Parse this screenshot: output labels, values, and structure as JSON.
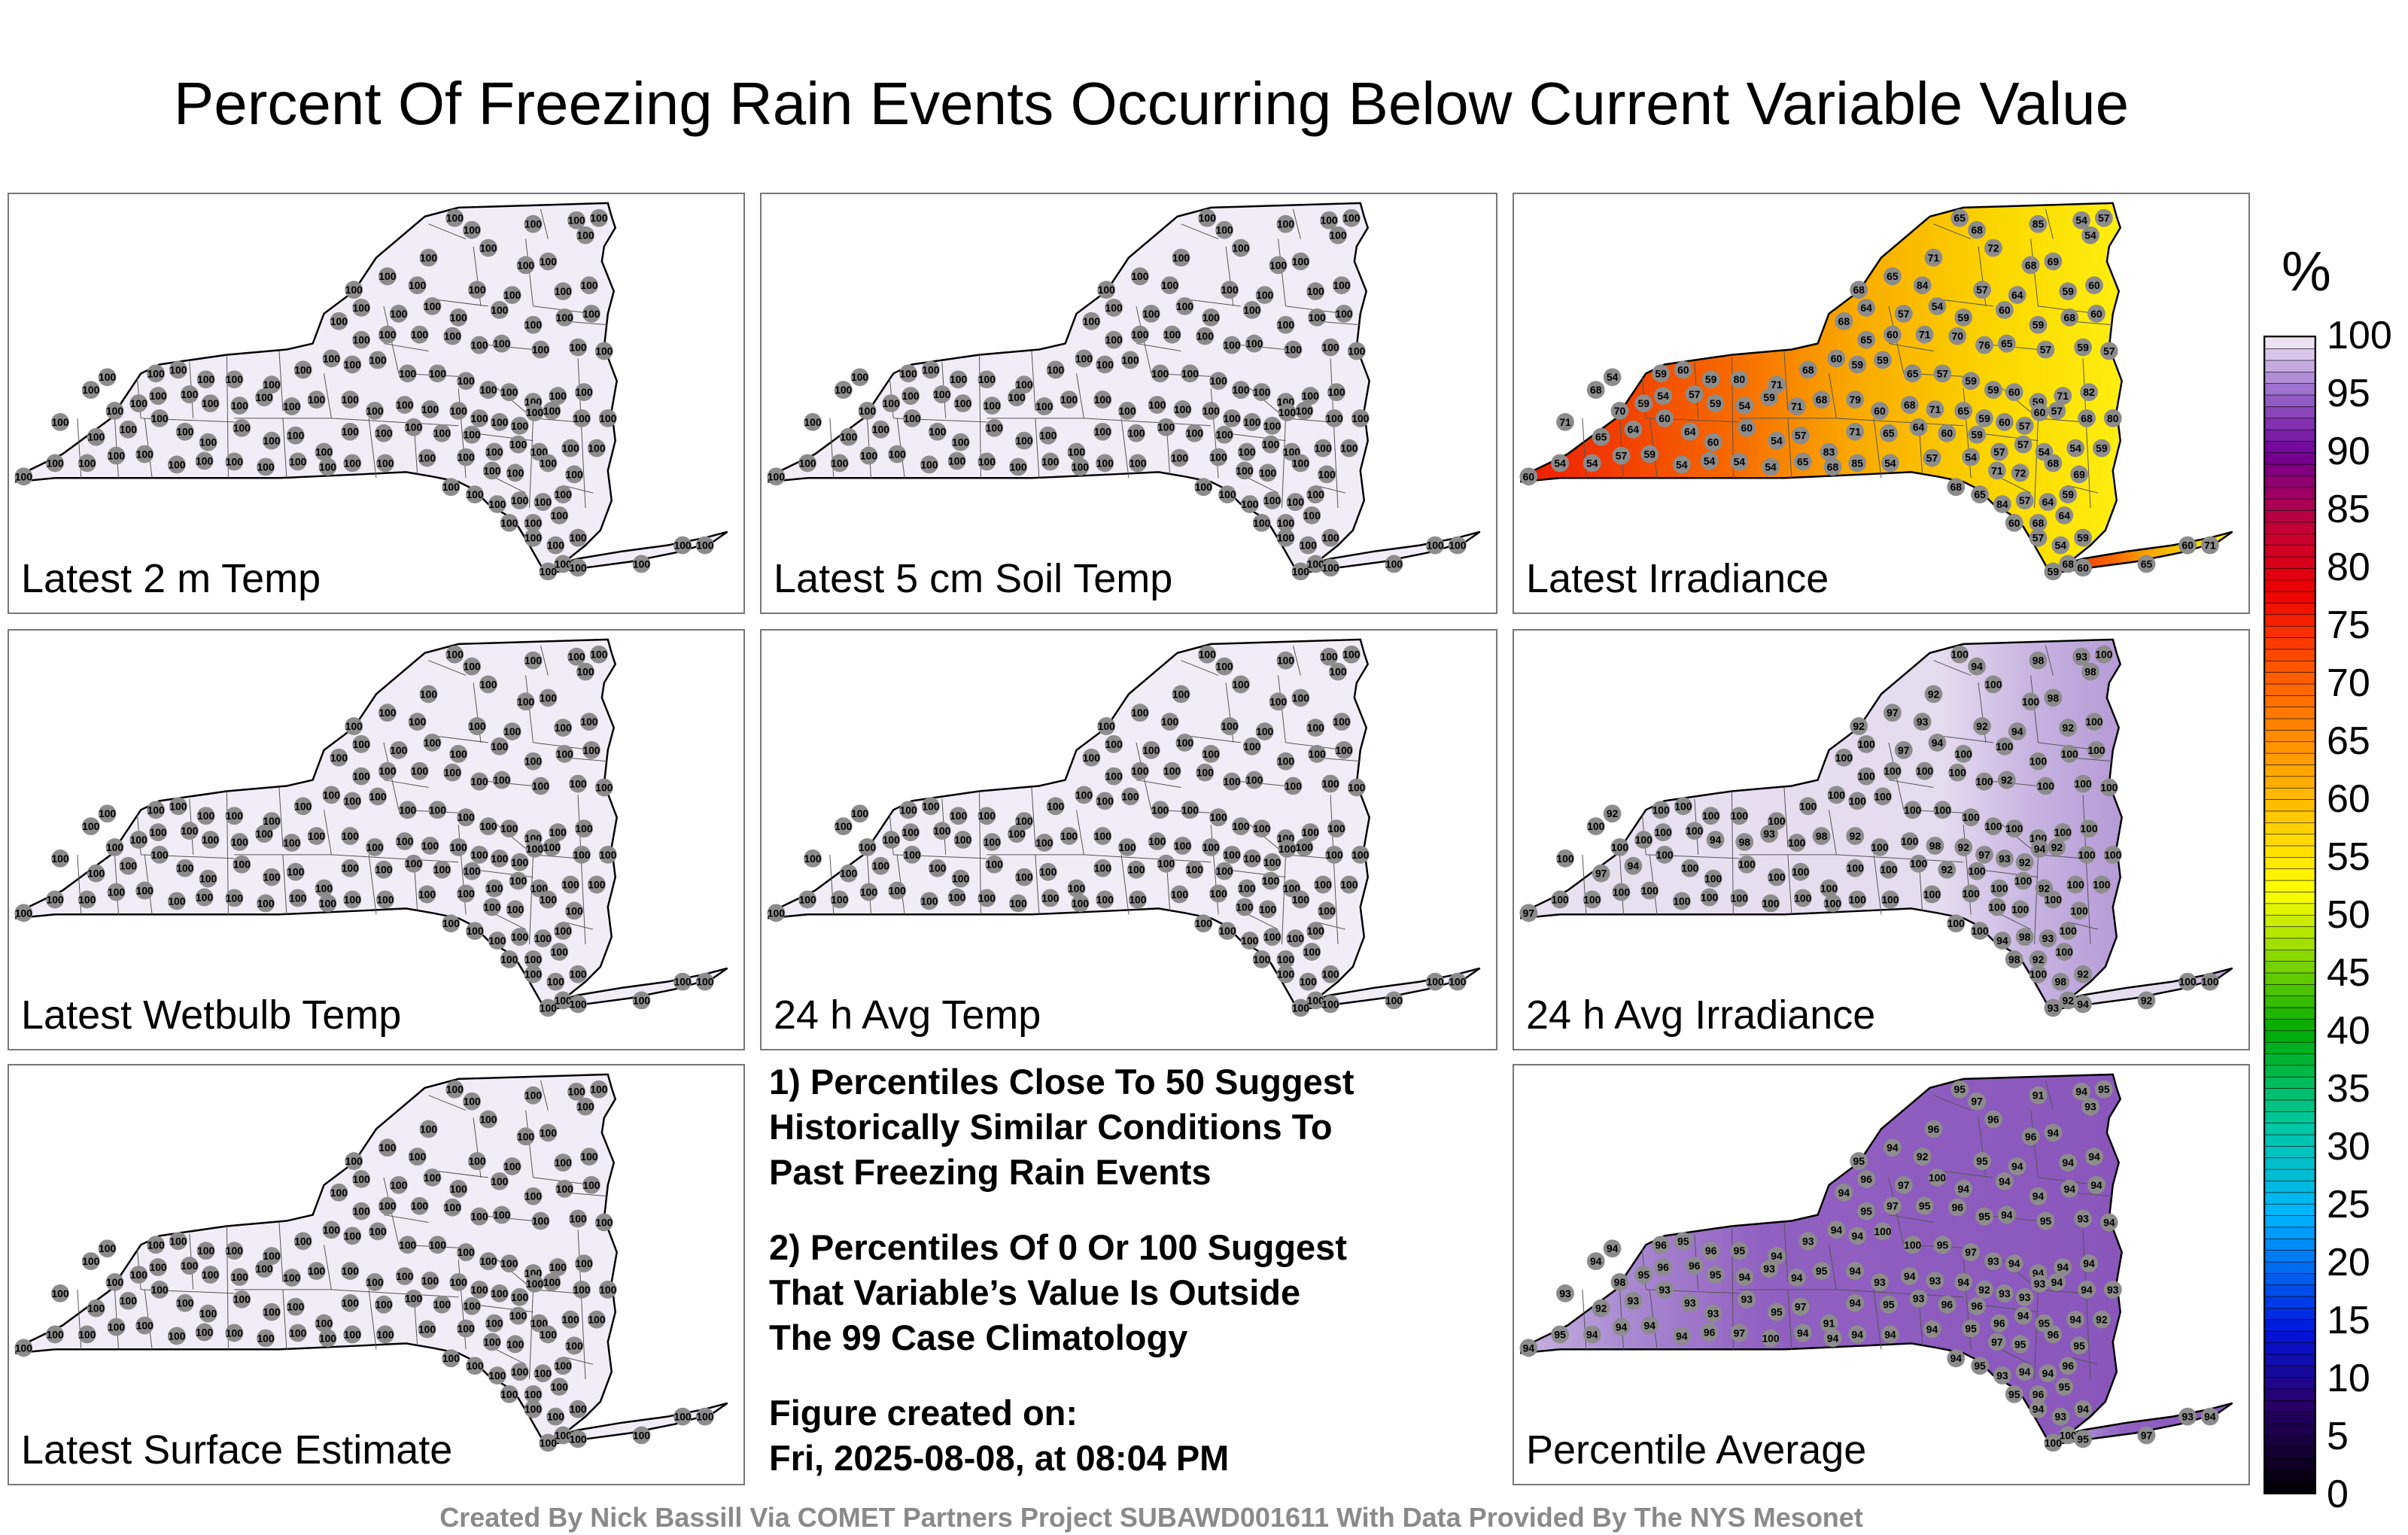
{
  "title": "Percent Of Freezing Rain Events Occurring Below Current Variable Value",
  "panels": [
    {
      "label": "Latest 2 m Temp",
      "mode": "uniform100"
    },
    {
      "label": "Latest 5 cm Soil Temp",
      "mode": "uniform100"
    },
    {
      "label": "Latest Irradiance",
      "mode": "irradiance"
    },
    {
      "label": "Latest Wetbulb Temp",
      "mode": "uniform100"
    },
    {
      "label": "24 h Avg Temp",
      "mode": "uniform100"
    },
    {
      "label": "24 h Avg Irradiance",
      "mode": "avgirr"
    },
    {
      "label": "Latest Surface Estimate",
      "mode": "uniform100"
    },
    {
      "label": "Percentile Average",
      "mode": "average"
    }
  ],
  "notes": {
    "note1": "1) Percentiles Close To 50 Suggest\nHistorically Similar Conditions To\nPast Freezing Rain Events",
    "note2": "2) Percentiles Of 0 Or 100 Suggest\nThat Variable’s Value Is Outside\nThe 99 Case Climatology",
    "created": "Figure created on:\nFri, 2025-08-08, at 08:04 PM"
  },
  "credit": "Created By Nick Bassill Via COMET Partners Project SUBAWD001611 With Data Provided By The NYS Mesonet",
  "colorbar": {
    "unit": "%",
    "ticks": [
      "0",
      "5",
      "10",
      "15",
      "20",
      "25",
      "30",
      "35",
      "40",
      "45",
      "50",
      "55",
      "60",
      "65",
      "70",
      "75",
      "80",
      "85",
      "90",
      "95",
      "100"
    ]
  },
  "station_values": {
    "uniform": "100",
    "irradiance": [
      "65",
      "68",
      "85",
      "54",
      "57",
      "54",
      "71",
      "72",
      "68",
      "69",
      "68",
      "65",
      "84",
      "57",
      "64",
      "59",
      "60",
      "68",
      "64",
      "57",
      "54",
      "59",
      "60",
      "59",
      "68",
      "60",
      "65",
      "60",
      "71",
      "70",
      "76",
      "65",
      "57",
      "59",
      "57",
      "54",
      "59",
      "60",
      "59",
      "80",
      "71",
      "68",
      "60",
      "59",
      "59",
      "65",
      "57",
      "59",
      "59",
      "60",
      "59",
      "71",
      "82",
      "68",
      "70",
      "59",
      "54",
      "57",
      "59",
      "54",
      "59",
      "71",
      "68",
      "79",
      "60",
      "68",
      "71",
      "65",
      "59",
      "60",
      "57",
      "60",
      "57",
      "68",
      "80",
      "71",
      "65",
      "64",
      "60",
      "64",
      "60",
      "60",
      "54",
      "57",
      "83",
      "71",
      "65",
      "64",
      "60",
      "59",
      "57",
      "57",
      "54",
      "54",
      "59",
      "54",
      "54",
      "57",
      "59",
      "54",
      "54",
      "54",
      "54"
    ],
    "avgirr": [
      "100",
      "94",
      "98",
      "93",
      "100",
      "98",
      "92",
      "100",
      "100",
      "98",
      "92",
      "97",
      "93",
      "92",
      "94",
      "92",
      "100",
      "100",
      "100",
      "97",
      "94",
      "100",
      "100",
      "100",
      "100",
      "100",
      "100",
      "100",
      "100",
      "100",
      "100",
      "92",
      "100",
      "100",
      "100",
      "92",
      "100",
      "100",
      "100",
      "100",
      "100",
      "100",
      "100",
      "100",
      "100",
      "100",
      "100",
      "100",
      "100",
      "100",
      "100",
      "100",
      "100",
      "100",
      "100",
      "100",
      "100"
    ],
    "average": [
      "95",
      "97",
      "91",
      "94",
      "95",
      "93",
      "96",
      "96",
      "96",
      "94",
      "95",
      "94",
      "92",
      "95",
      "94",
      "94",
      "94",
      "94",
      "96",
      "97",
      "100",
      "94",
      "94",
      "94",
      "94",
      "94",
      "95",
      "97",
      "95",
      "96",
      "95",
      "94",
      "95",
      "93",
      "94",
      "94",
      "96",
      "95",
      "96",
      "95",
      "94",
      "93",
      "94",
      "94",
      "100",
      "100",
      "95",
      "97",
      "93",
      "94",
      "94",
      "94",
      "94",
      "94",
      "98",
      "95",
      "96",
      "96",
      "95",
      "94",
      "93",
      "94",
      "95",
      "94",
      "93",
      "94",
      "93",
      "94",
      "92",
      "93",
      "93",
      "93",
      "94",
      "94",
      "93",
      "93",
      "92",
      "93",
      "93",
      "93",
      "93",
      "93"
    ]
  }
}
